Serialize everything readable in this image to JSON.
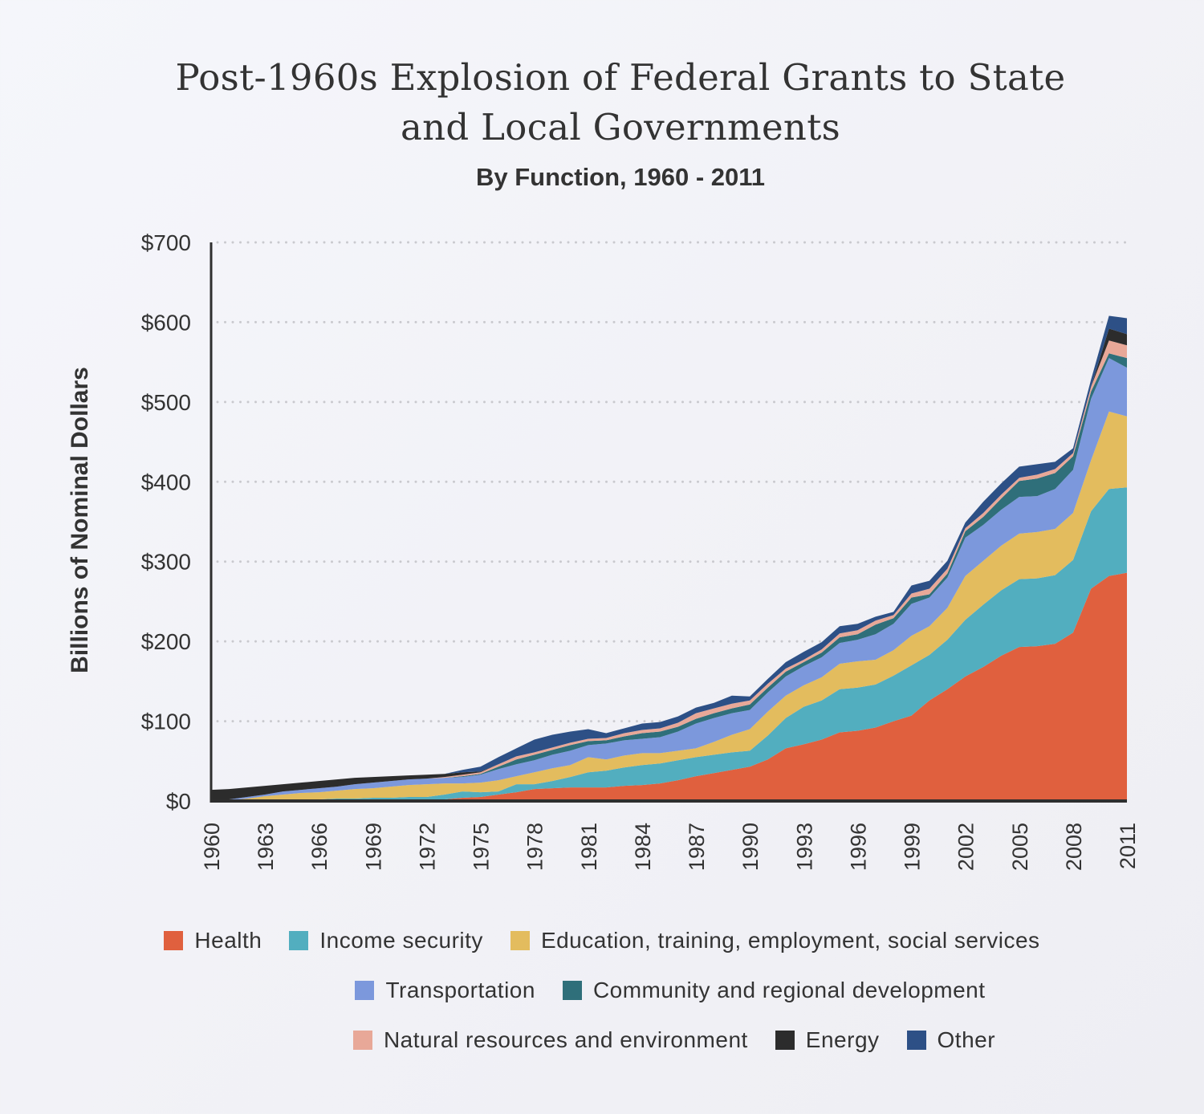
{
  "title_line1": "Post-1960s Explosion of Federal Grants to State",
  "title_line2": "and Local Governments",
  "subtitle": "By Function, 1960 - 2011",
  "chart_data": {
    "type": "area",
    "stacked": true,
    "title": "Post-1960s Explosion of Federal Grants to State and Local Governments",
    "subtitle": "By Function, 1960 - 2011",
    "xlabel": "",
    "ylabel": "Billions of Nominal Dollars",
    "ylim": [
      0,
      700
    ],
    "yticks": [
      0,
      100,
      200,
      300,
      400,
      500,
      600,
      700
    ],
    "ytick_labels": [
      "$0",
      "$100",
      "$200",
      "$300",
      "$400",
      "$500",
      "$600",
      "$700"
    ],
    "xtick_labels": [
      "1960",
      "1963",
      "1966",
      "1969",
      "1972",
      "1975",
      "1978",
      "1981",
      "1984",
      "1987",
      "1990",
      "1993",
      "1996",
      "1999",
      "2002",
      "2005",
      "2008",
      "2011"
    ],
    "grid": "horizontal dotted",
    "legend_position": "bottom",
    "x": [
      1960,
      1961,
      1962,
      1963,
      1964,
      1965,
      1966,
      1967,
      1968,
      1969,
      1970,
      1971,
      1972,
      1973,
      1974,
      1975,
      1976,
      1977,
      1978,
      1979,
      1980,
      1981,
      1982,
      1983,
      1984,
      1985,
      1986,
      1987,
      1988,
      1989,
      1990,
      1991,
      1992,
      1993,
      1994,
      1995,
      1996,
      1997,
      1998,
      1999,
      2000,
      2001,
      2002,
      2003,
      2004,
      2005,
      2006,
      2007,
      2008,
      2009,
      2010,
      2011
    ],
    "series": [
      {
        "name": "Health",
        "color": "#e0603e",
        "values": [
          0,
          0,
          0,
          0,
          0,
          0,
          0,
          0,
          0,
          0,
          0,
          0,
          0,
          2,
          4,
          5,
          8,
          11,
          15,
          16,
          17,
          17,
          17,
          19,
          20,
          22,
          26,
          31,
          35,
          39,
          43,
          52,
          66,
          71,
          77,
          86,
          88,
          92,
          100,
          107,
          126,
          140,
          156,
          168,
          182,
          193,
          194,
          197,
          211,
          266,
          282,
          286
        ]
      },
      {
        "name": "Income security",
        "color": "#52aebf",
        "values": [
          0,
          0,
          0,
          0,
          1,
          1,
          2,
          3,
          3,
          4,
          4,
          5,
          5,
          6,
          8,
          6,
          4,
          10,
          6,
          9,
          13,
          19,
          21,
          23,
          25,
          25,
          25,
          24,
          23,
          22,
          20,
          30,
          38,
          47,
          49,
          54,
          54,
          54,
          57,
          63,
          57,
          62,
          71,
          78,
          82,
          85,
          85,
          86,
          91,
          97,
          109,
          107
        ]
      },
      {
        "name": "Education, training, employment, social services",
        "color": "#e3bc5e",
        "values": [
          0,
          1,
          3,
          6,
          7,
          9,
          9,
          10,
          12,
          12,
          14,
          15,
          16,
          14,
          10,
          12,
          14,
          10,
          15,
          16,
          15,
          19,
          14,
          15,
          15,
          13,
          12,
          11,
          16,
          22,
          27,
          30,
          28,
          27,
          29,
          32,
          33,
          31,
          32,
          37,
          36,
          40,
          55,
          55,
          56,
          57,
          58,
          58,
          59,
          64,
          97,
          89
        ]
      },
      {
        "name": "Transportation",
        "color": "#7c98dc",
        "values": [
          0,
          1,
          2,
          2,
          4,
          4,
          5,
          5,
          6,
          7,
          7,
          7,
          7,
          7,
          8,
          10,
          14,
          15,
          15,
          17,
          18,
          15,
          20,
          19,
          18,
          20,
          24,
          31,
          30,
          27,
          24,
          24,
          24,
          24,
          25,
          26,
          27,
          32,
          33,
          40,
          36,
          38,
          48,
          45,
          45,
          46,
          45,
          50,
          54,
          77,
          67,
          61
        ]
      },
      {
        "name": "Community and regional development",
        "color": "#2f6f7a",
        "values": [
          0,
          0,
          0,
          0,
          0,
          0,
          0,
          0,
          0,
          0,
          0,
          0,
          0,
          0,
          1,
          1,
          3,
          6,
          7,
          6,
          7,
          5,
          4,
          5,
          7,
          7,
          6,
          6,
          6,
          6,
          7,
          6,
          6,
          5,
          6,
          7,
          7,
          12,
          7,
          8,
          4,
          5,
          8,
          10,
          14,
          20,
          22,
          20,
          17,
          9,
          6,
          12
        ]
      },
      {
        "name": "Natural resources and environment",
        "color": "#e8a898",
        "values": [
          0,
          0,
          0,
          0,
          0,
          0,
          0,
          0,
          0,
          0,
          0,
          0,
          0,
          1,
          2,
          2,
          3,
          4,
          3,
          3,
          3,
          3,
          3,
          4,
          4,
          4,
          5,
          7,
          6,
          6,
          5,
          5,
          4,
          3,
          4,
          5,
          5,
          5,
          4,
          5,
          7,
          6,
          4,
          5,
          5,
          4,
          5,
          5,
          4,
          6,
          16,
          16
        ]
      },
      {
        "name": "Energy",
        "color": "#2c2c2c",
        "values": [
          14,
          13,
          12,
          11,
          9,
          9,
          9,
          9,
          8,
          7,
          6,
          5,
          5,
          4,
          3,
          1,
          0,
          0,
          0,
          0,
          0,
          0,
          0,
          0,
          0,
          0,
          0,
          0,
          0,
          0,
          0,
          0,
          0,
          0,
          0,
          0,
          0,
          0,
          0,
          0,
          0,
          0,
          0,
          0,
          0,
          0,
          0,
          0,
          0,
          0,
          15,
          14
        ]
      },
      {
        "name": "Other",
        "color": "#2d5086",
        "values": [
          0,
          0,
          0,
          0,
          0,
          0,
          0,
          0,
          0,
          0,
          0,
          0,
          0,
          0,
          3,
          6,
          9,
          10,
          16,
          16,
          14,
          12,
          6,
          6,
          8,
          8,
          8,
          7,
          7,
          10,
          5,
          6,
          8,
          10,
          9,
          9,
          8,
          5,
          4,
          10,
          10,
          10,
          7,
          14,
          14,
          14,
          13,
          9,
          6,
          9,
          16,
          20
        ]
      }
    ]
  }
}
